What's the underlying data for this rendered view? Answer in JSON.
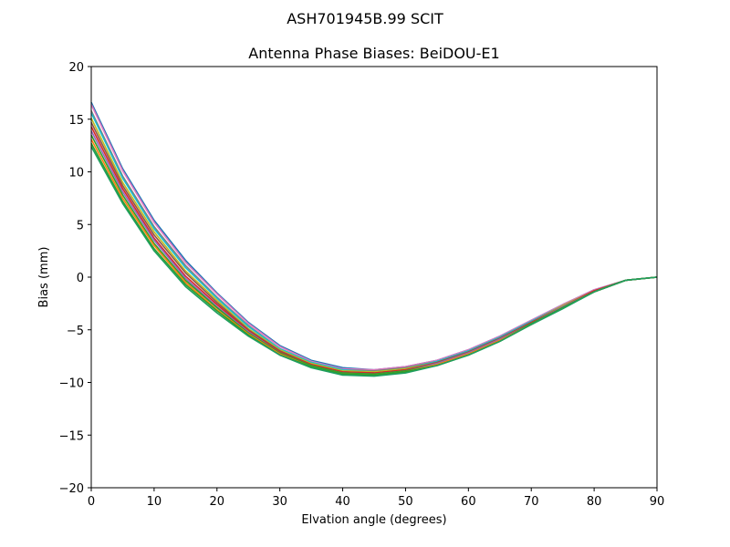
{
  "chart_data": {
    "type": "line",
    "suptitle": "ASH701945B.99   SCIT",
    "title": "Antenna Phase Biases: BeiDOU-E1",
    "xlabel": "Elvation angle (degrees)",
    "ylabel": "Bias (mm)",
    "xlim": [
      0,
      90
    ],
    "ylim": [
      -20,
      20
    ],
    "xticks": [
      0,
      10,
      20,
      30,
      40,
      50,
      60,
      70,
      80,
      90
    ],
    "yticks": [
      -20,
      -15,
      -10,
      -5,
      0,
      5,
      10,
      15,
      20
    ],
    "grid": false,
    "legend": "none",
    "x": [
      0,
      5,
      10,
      15,
      20,
      25,
      30,
      35,
      40,
      45,
      50,
      55,
      60,
      65,
      70,
      75,
      80,
      85,
      90
    ],
    "series": [
      {
        "color": "#1f77b4",
        "values": [
          16.6,
          10.3,
          5.4,
          1.6,
          -1.5,
          -4.3,
          -6.5,
          -7.9,
          -8.6,
          -8.8,
          -8.5,
          -7.9,
          -6.9,
          -5.6,
          -4.1,
          -2.6,
          -1.2,
          -0.3,
          0.0
        ]
      },
      {
        "color": "#e377c2",
        "values": [
          16.4,
          10.1,
          5.2,
          1.4,
          -1.6,
          -4.4,
          -6.6,
          -8.0,
          -8.7,
          -8.8,
          -8.5,
          -7.9,
          -6.9,
          -5.6,
          -4.1,
          -2.6,
          -1.2,
          -0.3,
          0.0
        ]
      },
      {
        "color": "#7f7f7f",
        "values": [
          15.8,
          9.6,
          4.8,
          1.1,
          -1.9,
          -4.6,
          -6.8,
          -8.1,
          -8.8,
          -8.9,
          -8.6,
          -8.0,
          -7.0,
          -5.7,
          -4.2,
          -2.7,
          -1.3,
          -0.3,
          0.0
        ]
      },
      {
        "color": "#17becf",
        "values": [
          15.6,
          9.4,
          4.6,
          0.9,
          -2.0,
          -4.7,
          -6.8,
          -8.1,
          -8.8,
          -9.0,
          -8.7,
          -8.0,
          -7.0,
          -5.7,
          -4.2,
          -2.7,
          -1.3,
          -0.3,
          0.0
        ]
      },
      {
        "color": "#bcbd22",
        "values": [
          15.1,
          9.0,
          4.3,
          0.6,
          -2.2,
          -4.9,
          -6.9,
          -8.2,
          -8.9,
          -9.0,
          -8.7,
          -8.1,
          -7.1,
          -5.8,
          -4.3,
          -2.7,
          -1.3,
          -0.3,
          0.0
        ]
      },
      {
        "color": "#8c564b",
        "values": [
          14.7,
          8.7,
          4.0,
          0.4,
          -2.4,
          -5.0,
          -7.0,
          -8.3,
          -9.0,
          -9.1,
          -8.8,
          -8.1,
          -7.1,
          -5.8,
          -4.3,
          -2.8,
          -1.3,
          -0.3,
          0.0
        ]
      },
      {
        "color": "#d62728",
        "values": [
          14.3,
          8.4,
          3.7,
          0.1,
          -2.6,
          -5.1,
          -7.1,
          -8.3,
          -9.0,
          -9.1,
          -8.8,
          -8.2,
          -7.2,
          -5.9,
          -4.3,
          -2.8,
          -1.3,
          -0.3,
          0.0
        ]
      },
      {
        "color": "#9467bd",
        "values": [
          13.9,
          8.1,
          3.5,
          -0.1,
          -2.8,
          -5.2,
          -7.2,
          -8.4,
          -9.1,
          -9.2,
          -8.9,
          -8.2,
          -7.2,
          -5.9,
          -4.4,
          -2.8,
          -1.4,
          -0.3,
          0.0
        ]
      },
      {
        "color": "#2ca02c",
        "values": [
          13.5,
          7.8,
          3.2,
          -0.3,
          -2.9,
          -5.3,
          -7.2,
          -8.4,
          -9.1,
          -9.2,
          -8.9,
          -8.3,
          -7.3,
          -6.0,
          -4.4,
          -2.9,
          -1.4,
          -0.3,
          0.0
        ]
      },
      {
        "color": "#ff7f0e",
        "values": [
          13.1,
          7.5,
          3.0,
          -0.5,
          -3.1,
          -5.4,
          -7.3,
          -8.5,
          -9.2,
          -9.3,
          -9.0,
          -8.3,
          -7.3,
          -6.0,
          -4.5,
          -2.9,
          -1.4,
          -0.3,
          0.0
        ]
      },
      {
        "color": "#2ca02c",
        "values": [
          12.7,
          7.2,
          2.7,
          -0.7,
          -3.2,
          -5.5,
          -7.4,
          -8.5,
          -9.2,
          -9.3,
          -9.0,
          -8.4,
          -7.4,
          -6.1,
          -4.5,
          -2.9,
          -1.4,
          -0.3,
          0.0
        ]
      },
      {
        "color": "#1f9e5f",
        "values": [
          12.4,
          7.0,
          2.5,
          -0.9,
          -3.4,
          -5.6,
          -7.4,
          -8.6,
          -9.3,
          -9.4,
          -9.1,
          -8.4,
          -7.4,
          -6.1,
          -4.5,
          -3.0,
          -1.4,
          -0.3,
          0.0
        ]
      }
    ]
  }
}
